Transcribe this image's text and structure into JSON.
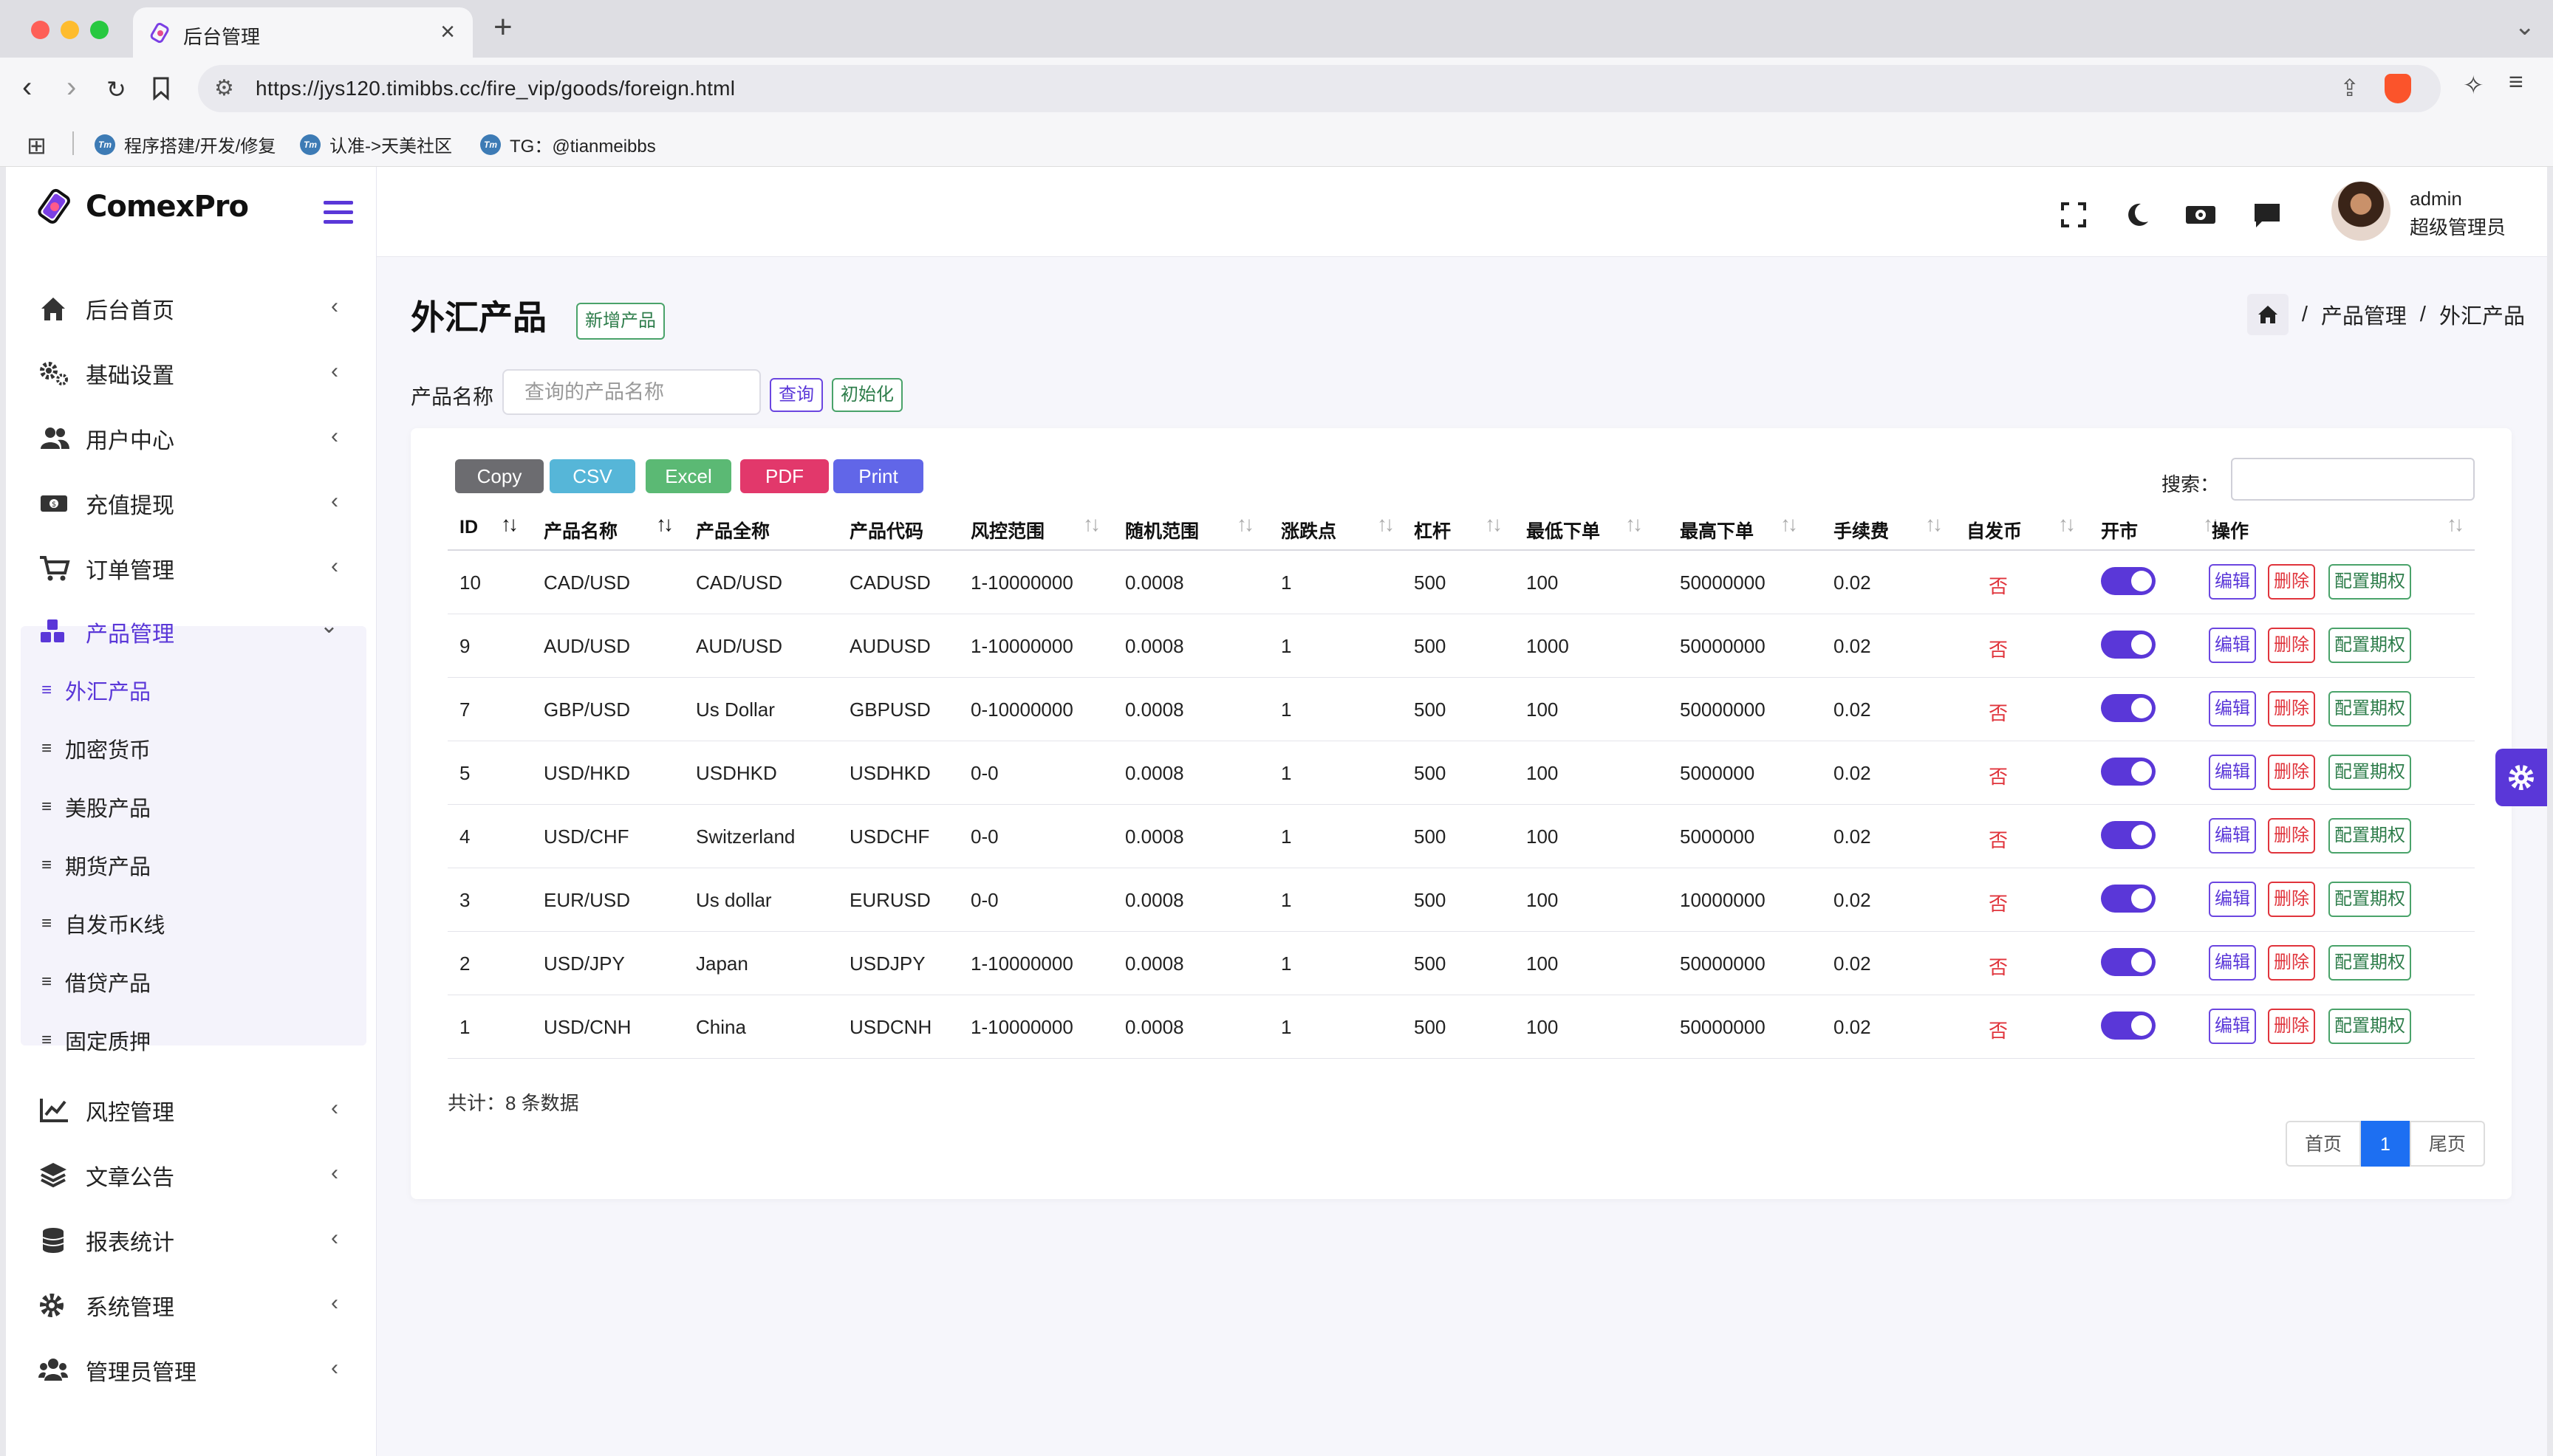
{
  "browser": {
    "tab_title": "后台管理",
    "url": "https://jys120.timibbs.cc/fire_vip/goods/foreign.html",
    "bookmarks": [
      "程序搭建/开发/修复",
      "认准->天美社区",
      "TG：@tianmeibbs"
    ]
  },
  "brand": {
    "name": "ComexPro"
  },
  "sidebar": {
    "items": [
      {
        "label": "后台首页",
        "icon": "home-icon"
      },
      {
        "label": "基础设置",
        "icon": "gears-icon"
      },
      {
        "label": "用户中心",
        "icon": "users-icon"
      },
      {
        "label": "充值提现",
        "icon": "money-icon"
      },
      {
        "label": "订单管理",
        "icon": "cart-icon"
      },
      {
        "label": "产品管理",
        "icon": "cubes-icon",
        "expanded": true
      },
      {
        "label": "风控管理",
        "icon": "chart-line-icon"
      },
      {
        "label": "文章公告",
        "icon": "layers-icon"
      },
      {
        "label": "报表统计",
        "icon": "coins-icon"
      },
      {
        "label": "系统管理",
        "icon": "gear-icon"
      },
      {
        "label": "管理员管理",
        "icon": "user-group-icon"
      }
    ],
    "sub_items": [
      "外汇产品",
      "加密货币",
      "美股产品",
      "期货产品",
      "自发币K线",
      "借贷产品",
      "固定质押"
    ],
    "active_sub": "外汇产品"
  },
  "header": {
    "user_name": "admin",
    "user_role": "超级管理员"
  },
  "page": {
    "title": "外汇产品",
    "add_button": "新增产品",
    "breadcrumb": [
      "产品管理",
      "外汇产品"
    ],
    "breadcrumb_sep": "/"
  },
  "filter": {
    "label": "产品名称",
    "placeholder": "查询的产品名称",
    "query_button": "查询",
    "reset_button": "初始化"
  },
  "toolbar": {
    "export_buttons": [
      {
        "label": "Copy",
        "color": "#6c6c70"
      },
      {
        "label": "CSV",
        "color": "#56b6d8"
      },
      {
        "label": "Excel",
        "color": "#5bb974"
      },
      {
        "label": "PDF",
        "color": "#e2386b"
      },
      {
        "label": "Print",
        "color": "#6166e8"
      }
    ],
    "search_label": "搜索："
  },
  "table": {
    "columns": [
      "ID",
      "产品名称",
      "产品全称",
      "产品代码",
      "风控范围",
      "随机范围",
      "涨跌点",
      "杠杆",
      "最低下单",
      "最高下单",
      "手续费",
      "自发币",
      "开市",
      "操作"
    ],
    "rows": [
      [
        "10",
        "CAD/USD",
        "CAD/USD",
        "CADUSD",
        "1-10000000",
        "0.0008",
        "1",
        "500",
        "100",
        "50000000",
        "0.02",
        "否"
      ],
      [
        "9",
        "AUD/USD",
        "AUD/USD",
        "AUDUSD",
        "1-10000000",
        "0.0008",
        "1",
        "500",
        "1000",
        "50000000",
        "0.02",
        "否"
      ],
      [
        "7",
        "GBP/USD",
        "Us Dollar",
        "GBPUSD",
        "0-10000000",
        "0.0008",
        "1",
        "500",
        "100",
        "50000000",
        "0.02",
        "否"
      ],
      [
        "5",
        "USD/HKD",
        "USDHKD",
        "USDHKD",
        "0-0",
        "0.0008",
        "1",
        "500",
        "100",
        "5000000",
        "0.02",
        "否"
      ],
      [
        "4",
        "USD/CHF",
        "Switzerland",
        "USDCHF",
        "0-0",
        "0.0008",
        "1",
        "500",
        "100",
        "5000000",
        "0.02",
        "否"
      ],
      [
        "3",
        "EUR/USD",
        "Us dollar",
        "EURUSD",
        "0-0",
        "0.0008",
        "1",
        "500",
        "100",
        "10000000",
        "0.02",
        "否"
      ],
      [
        "2",
        "USD/JPY",
        "Japan",
        "USDJPY",
        "1-10000000",
        "0.0008",
        "1",
        "500",
        "100",
        "50000000",
        "0.02",
        "否"
      ],
      [
        "1",
        "USD/CNH",
        "China",
        "USDCNH",
        "1-10000000",
        "0.0008",
        "1",
        "500",
        "100",
        "50000000",
        "0.02",
        "否"
      ]
    ],
    "open_market": [
      true,
      true,
      true,
      true,
      true,
      true,
      true,
      true
    ],
    "actions": [
      "编辑",
      "删除",
      "配置期权"
    ]
  },
  "footer": {
    "total": "共计：8 条数据",
    "pager": [
      "首页",
      "1",
      "尾页"
    ]
  },
  "colors": {
    "accent": "#5a37d8",
    "danger": "#e0343c",
    "success": "#2e7d4b",
    "pager_active": "#1d6ff2"
  }
}
